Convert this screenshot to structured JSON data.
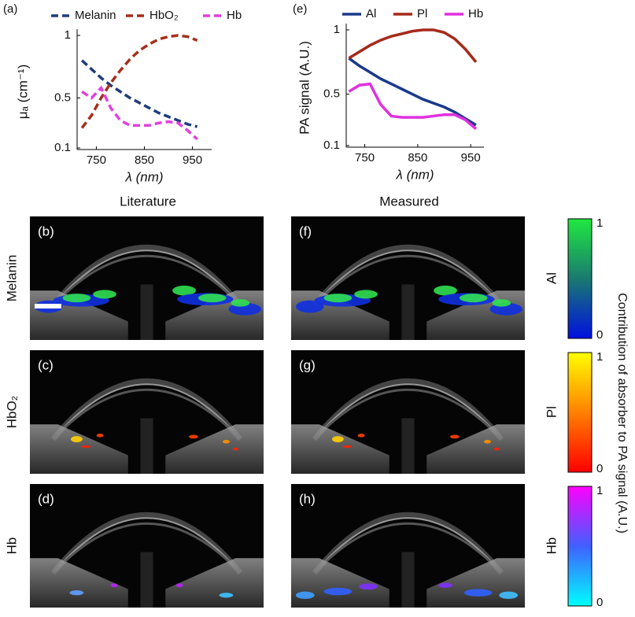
{
  "chart_data": [
    {
      "type": "line",
      "panel_label": "(a)",
      "xlabel": "λ (nm)",
      "ylabel": "μₐ (cm⁻¹)",
      "line_style": "dashed",
      "x": [
        720,
        740,
        760,
        780,
        800,
        820,
        840,
        860,
        880,
        900,
        920,
        940,
        960
      ],
      "series": [
        {
          "name": "Melanin",
          "color": "#1f3d7a",
          "values": [
            0.8,
            0.73,
            0.66,
            0.6,
            0.55,
            0.5,
            0.46,
            0.42,
            0.38,
            0.35,
            0.32,
            0.29,
            0.27
          ]
        },
        {
          "name": "HbO₂",
          "color": "#a3301c",
          "values": [
            0.26,
            0.36,
            0.5,
            0.62,
            0.72,
            0.81,
            0.88,
            0.93,
            0.97,
            0.99,
            1.0,
            0.99,
            0.96
          ]
        },
        {
          "name": "Hb",
          "color": "#e040e0",
          "values": [
            0.55,
            0.5,
            0.58,
            0.42,
            0.32,
            0.28,
            0.28,
            0.28,
            0.3,
            0.31,
            0.3,
            0.24,
            0.17
          ]
        }
      ],
      "xlim": [
        710,
        990
      ],
      "xticks": [
        750,
        850,
        950
      ],
      "ylim": [
        0.1,
        1
      ],
      "yticks": [
        0.1,
        0.5,
        1
      ]
    },
    {
      "type": "line",
      "panel_label": "(e)",
      "xlabel": "λ (nm)",
      "ylabel": "PA signal (A.U.)",
      "line_style": "solid",
      "x": [
        720,
        740,
        760,
        780,
        800,
        820,
        840,
        860,
        880,
        900,
        920,
        940,
        960
      ],
      "series": [
        {
          "name": "Al",
          "color": "#1a3a8a",
          "values": [
            0.78,
            0.72,
            0.67,
            0.62,
            0.58,
            0.54,
            0.5,
            0.46,
            0.43,
            0.4,
            0.36,
            0.31,
            0.26
          ]
        },
        {
          "name": "Pl",
          "color": "#a62a1a",
          "values": [
            0.78,
            0.83,
            0.88,
            0.92,
            0.95,
            0.97,
            0.99,
            1.0,
            1.0,
            0.98,
            0.93,
            0.85,
            0.75
          ]
        },
        {
          "name": "Hb",
          "color": "#e030e0",
          "values": [
            0.52,
            0.57,
            0.58,
            0.42,
            0.33,
            0.32,
            0.32,
            0.32,
            0.33,
            0.34,
            0.34,
            0.3,
            0.23
          ]
        }
      ],
      "xlim": [
        715,
        975
      ],
      "xticks": [
        750,
        850,
        950
      ],
      "ylim": [
        0.1,
        1
      ],
      "yticks": [
        0.1,
        0.5,
        1
      ]
    }
  ],
  "columns": [
    "Literature",
    "Measured"
  ],
  "row_labels_left": [
    "Melanin",
    "HbO₂",
    "Hb"
  ],
  "row_labels_right": [
    "Al",
    "Pl",
    "Hb"
  ],
  "panels": [
    "(b)",
    "(c)",
    "(d)",
    "(f)",
    "(g)",
    "(h)"
  ],
  "colorbars": [
    {
      "max": 1,
      "min": 0
    },
    {
      "max": 1,
      "min": 0
    },
    {
      "max": 1,
      "min": 0
    }
  ],
  "colorbar_label": "Contribution of absorber to PA signal (A.U.)"
}
